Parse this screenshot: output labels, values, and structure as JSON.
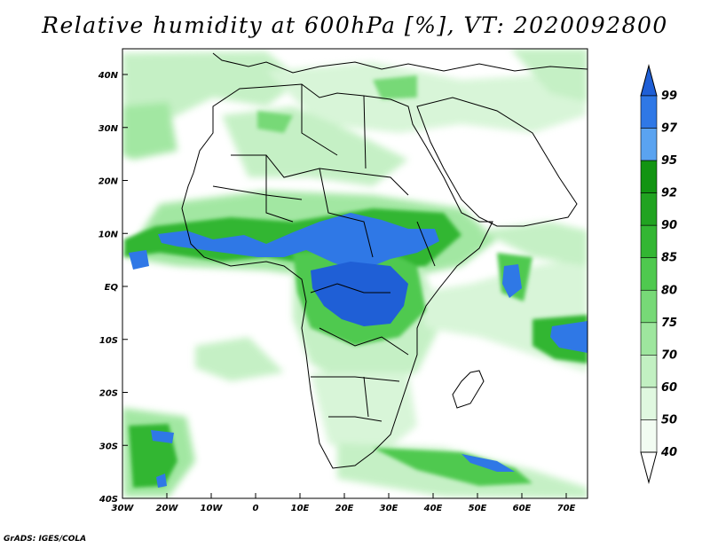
{
  "title": "Relative humidity at 600hPa [%], VT: 2020092800",
  "credit": "GrADS: IGES/COLA",
  "map": {
    "lon_ticks": [
      "30W",
      "20W",
      "10W",
      "0",
      "10E",
      "20E",
      "30E",
      "40E",
      "50E",
      "60E",
      "70E"
    ],
    "lat_ticks": [
      "40N",
      "30N",
      "20N",
      "10N",
      "EQ",
      "10S",
      "20S",
      "30S",
      "40S"
    ]
  },
  "colorbar": {
    "levels": [
      "99",
      "97",
      "95",
      "92",
      "90",
      "85",
      "80",
      "75",
      "70",
      "60",
      "50",
      "40"
    ],
    "colors": [
      "#1f5fd6",
      "#2f78e6",
      "#5aa3f0",
      "#129412",
      "#21a321",
      "#33b633",
      "#4fc94f",
      "#77d977",
      "#9ee69e",
      "#c2f0c2",
      "#e0f8e0",
      "#f2fcf2"
    ]
  }
}
